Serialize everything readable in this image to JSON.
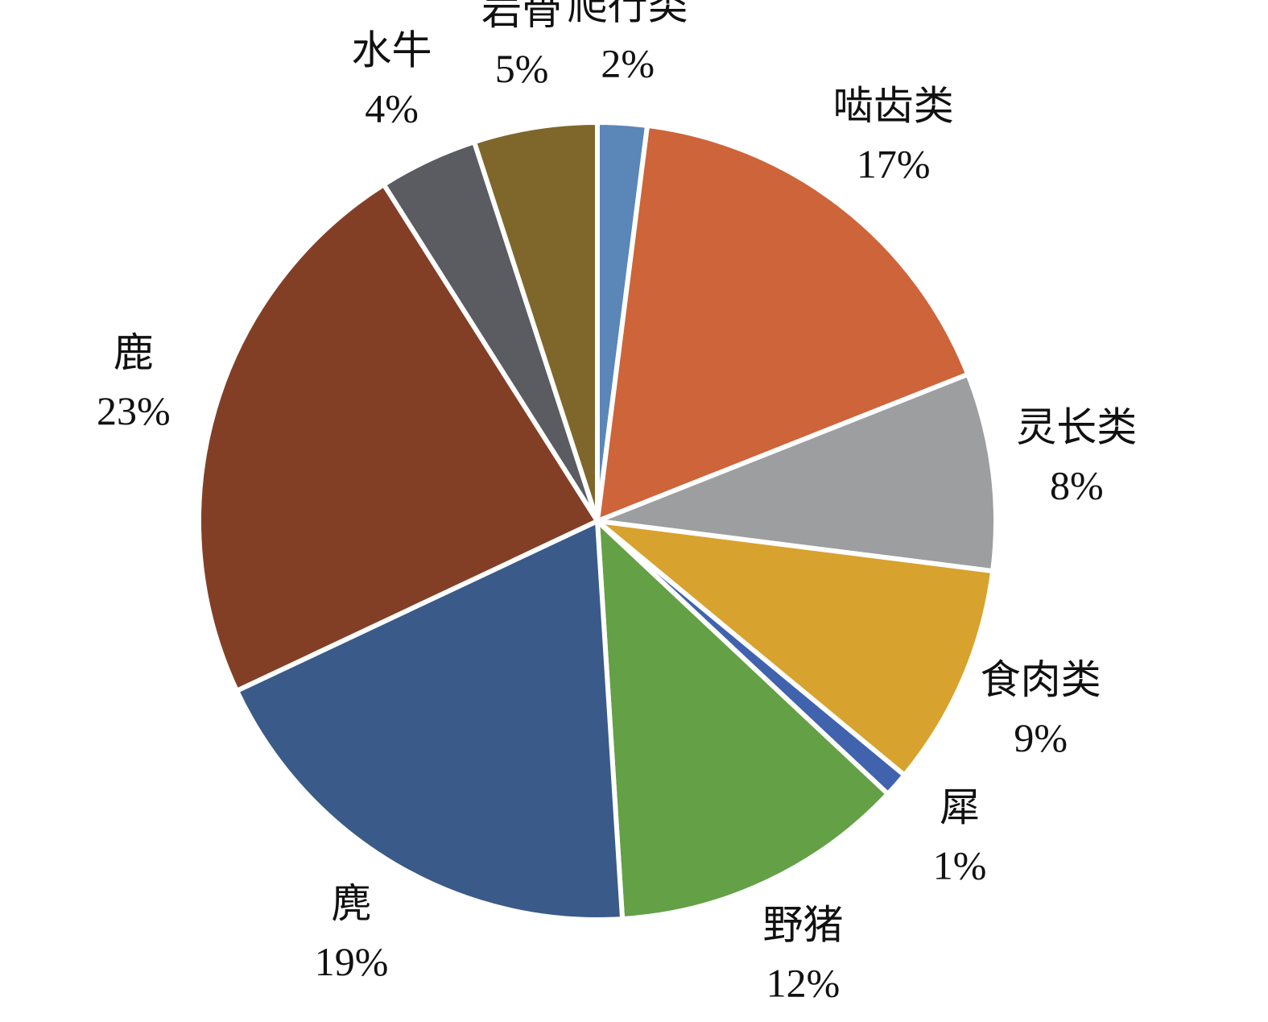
{
  "chart_data": {
    "type": "pie",
    "categories": [
      "爬行类",
      "啮齿类",
      "灵长类",
      "食肉类",
      "犀",
      "野猪",
      "麂",
      "鹿",
      "水牛",
      "岩骨"
    ],
    "values": [
      2,
      17,
      8,
      9,
      1,
      12,
      19,
      23,
      4,
      5
    ],
    "value_labels": [
      "2%",
      "17%",
      "8%",
      "9%",
      "1%",
      "12%",
      "19%",
      "23%",
      "4%",
      "5%"
    ],
    "colors": [
      "#5a86b8",
      "#cd643a",
      "#9d9ea0",
      "#d8a22e",
      "#4162ad",
      "#64a046",
      "#3a5a89",
      "#833f26",
      "#5a5c62",
      "#7f672b"
    ]
  }
}
